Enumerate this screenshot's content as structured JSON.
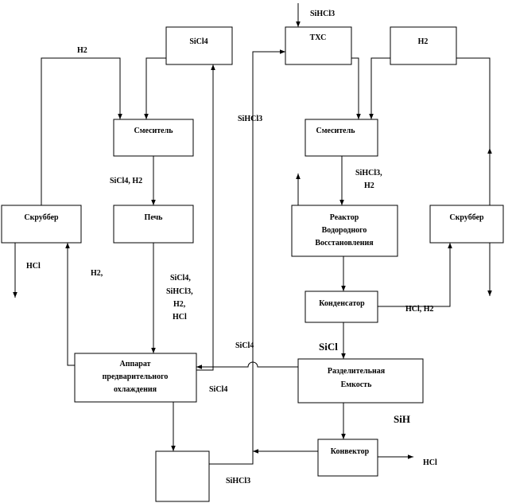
{
  "boxes": {
    "sicl4_tank": "SiCl4",
    "tcs_tank": "ТХС",
    "h2_tank": "H2",
    "mixer_left": "Смеситель",
    "mixer_right": "Смеситель",
    "scrubber_left": "Скруббер",
    "furnace": "Печь",
    "reactor": [
      "Реактор",
      "Водородного",
      "Восстановления"
    ],
    "scrubber_right": "Скруббер",
    "condenser": "Конденсатор",
    "precooler": [
      "Аппарат",
      "предварительного",
      "охлаждения"
    ],
    "separator": [
      "Разделительная",
      "Емкость"
    ],
    "convector": "Конвектор",
    "bottom_tank": ""
  },
  "labels": {
    "h2_top": "H2",
    "tcs_in": "SiHCl3",
    "sihcl3_vertical": "SiHCl3",
    "sicl4_h2": "SiCl4, H2",
    "sihcl3_h2": [
      "SiHCl3,",
      "H2"
    ],
    "hcl_left": "HCl",
    "h2_return": "H2,",
    "furnace_out": [
      "SiCl4,",
      "SiHCl3,",
      "H2,",
      "HCl"
    ],
    "hcl_h2": "HCl, H2",
    "sicl4_mid": "SiCl4",
    "sicl": "SiCl",
    "sicl4_return": "SiCl4",
    "sih": "SiH",
    "hcl_out": "HCl",
    "sihcl3_bottom": "SiHCl3"
  }
}
